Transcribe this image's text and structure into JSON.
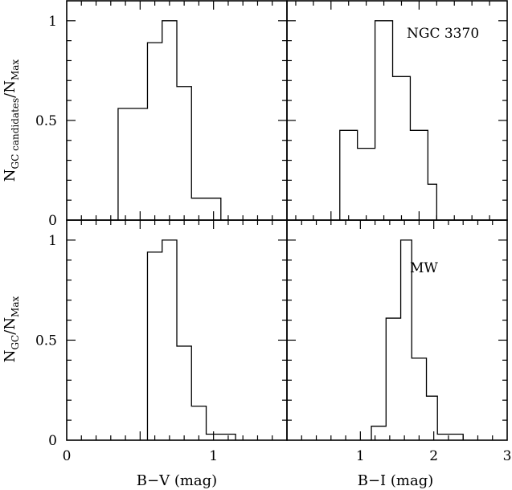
{
  "chart_data": [
    {
      "id": "tl",
      "type": "histogram",
      "xlabel": "",
      "ylabel": "N_GC candidates/N_Max",
      "xlim": [
        0,
        1.5
      ],
      "ylim": [
        0,
        1.1
      ],
      "xticks": [],
      "yticks": [
        0,
        0.5,
        1
      ],
      "ytick_labels": [
        "0",
        "0.5",
        "1"
      ],
      "annotation": "",
      "bins": [
        {
          "x0": 0.35,
          "x1": 0.55,
          "y": 0.56
        },
        {
          "x0": 0.55,
          "x1": 0.65,
          "y": 0.89
        },
        {
          "x0": 0.65,
          "x1": 0.75,
          "y": 1.0
        },
        {
          "x0": 0.75,
          "x1": 0.85,
          "y": 0.67
        },
        {
          "x0": 0.85,
          "x1": 1.05,
          "y": 0.11
        }
      ]
    },
    {
      "id": "tr",
      "type": "histogram",
      "xlabel": "",
      "ylabel": "",
      "xlim": [
        0.5,
        3
      ],
      "ylim": [
        0,
        1.1
      ],
      "xticks": [],
      "yticks": [],
      "annotation": "NGC 3370",
      "bins": [
        {
          "x0": 1.1,
          "x1": 1.3,
          "y": 0.45
        },
        {
          "x0": 1.3,
          "x1": 1.5,
          "y": 0.36
        },
        {
          "x0": 1.5,
          "x1": 1.7,
          "y": 1.0
        },
        {
          "x0": 1.7,
          "x1": 1.9,
          "y": 0.72
        },
        {
          "x0": 1.9,
          "x1": 2.1,
          "y": 0.45
        },
        {
          "x0": 2.1,
          "x1": 2.2,
          "y": 0.18
        }
      ]
    },
    {
      "id": "bl",
      "type": "histogram",
      "xlabel": "B−V (mag)",
      "ylabel": "N_GC/N_Max",
      "xlim": [
        0,
        1.5
      ],
      "ylim": [
        0,
        1.1
      ],
      "xticks": [
        0,
        1
      ],
      "xtick_labels": [
        "0",
        "1"
      ],
      "yticks": [
        0,
        0.5,
        1
      ],
      "ytick_labels": [
        "0",
        "0.5",
        "1"
      ],
      "annotation": "",
      "bins": [
        {
          "x0": 0.55,
          "x1": 0.65,
          "y": 0.94
        },
        {
          "x0": 0.65,
          "x1": 0.75,
          "y": 1.0
        },
        {
          "x0": 0.75,
          "x1": 0.85,
          "y": 0.47
        },
        {
          "x0": 0.85,
          "x1": 0.95,
          "y": 0.17
        },
        {
          "x0": 0.95,
          "x1": 1.15,
          "y": 0.03
        }
      ]
    },
    {
      "id": "br",
      "type": "histogram",
      "xlabel": "B−I (mag)",
      "ylabel": "",
      "xlim": [
        0,
        3
      ],
      "ylim": [
        0,
        1.1
      ],
      "xticks": [
        1,
        2,
        3
      ],
      "xtick_labels": [
        "1",
        "2",
        "3"
      ],
      "yticks": [],
      "annotation": "MW",
      "bins": [
        {
          "x0": 1.15,
          "x1": 1.35,
          "y": 0.07
        },
        {
          "x0": 1.35,
          "x1": 1.55,
          "y": 0.61
        },
        {
          "x0": 1.55,
          "x1": 1.7,
          "y": 1.0
        },
        {
          "x0": 1.7,
          "x1": 1.9,
          "y": 0.41
        },
        {
          "x0": 1.9,
          "x1": 2.05,
          "y": 0.22
        },
        {
          "x0": 2.05,
          "x1": 2.4,
          "y": 0.03
        }
      ]
    }
  ]
}
